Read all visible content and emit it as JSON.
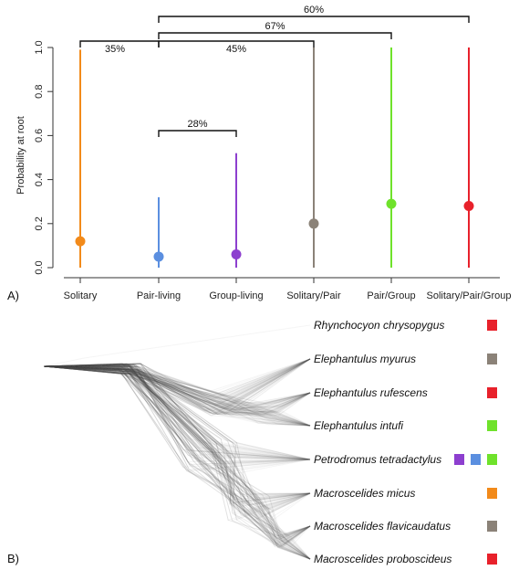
{
  "panel_a_label": "A)",
  "panel_b_label": "B)",
  "chart_data": [
    {
      "type": "scatter",
      "title": "",
      "xlabel": "",
      "ylabel": "Probability at root",
      "ylim": [
        0,
        1
      ],
      "yticks": [
        "0.0",
        "0.2",
        "0.4",
        "0.6",
        "0.8",
        "1.0"
      ],
      "categories": [
        "Solitary",
        "Pair-living",
        "Group-living",
        "Solitary/Pair",
        "Pair/Group",
        "Solitary/Pair/Group"
      ],
      "values": [
        0.12,
        0.05,
        0.06,
        0.2,
        0.29,
        0.28
      ],
      "upper": [
        0.99,
        0.32,
        0.52,
        1.0,
        1.0,
        1.0
      ],
      "lower": [
        0.0,
        0.0,
        0.0,
        0.0,
        0.0,
        0.0
      ],
      "colors": [
        "#f28a1a",
        "#5b8fe0",
        "#8d3fcf",
        "#8b8278",
        "#6fe22b",
        "#e8212b"
      ],
      "brackets": [
        {
          "label": "60%",
          "from": 1,
          "to": 5,
          "level": 3
        },
        {
          "label": "67%",
          "from": 1,
          "to": 4,
          "level": 2
        },
        {
          "label": "35%",
          "from": 0,
          "to": 1,
          "level": 1
        },
        {
          "label": "45%",
          "from": 1,
          "to": 3,
          "level": 1
        },
        {
          "label": "28%",
          "from": 1,
          "to": 2,
          "level": 0
        }
      ],
      "grid": false
    },
    {
      "type": "tree",
      "species": [
        {
          "name": "Rhynchocyon chrysopygus",
          "states": [
            "#e8212b"
          ]
        },
        {
          "name": "Elephantulus myurus",
          "states": [
            "#8b8278"
          ]
        },
        {
          "name": "Elephantulus rufescens",
          "states": [
            "#e8212b"
          ]
        },
        {
          "name": "Elephantulus intufi",
          "states": [
            "#6fe22b"
          ]
        },
        {
          "name": "Petrodromus tetradactylus",
          "states": [
            "#8d3fcf",
            "#5b8fe0",
            "#6fe22b"
          ]
        },
        {
          "name": "Macroscelides micus",
          "states": [
            "#f28a1a"
          ]
        },
        {
          "name": "Macroscelides flavicaudatus",
          "states": [
            "#8b8278"
          ]
        },
        {
          "name": "Macroscelides proboscideus",
          "states": [
            "#e8212b"
          ]
        }
      ]
    }
  ]
}
